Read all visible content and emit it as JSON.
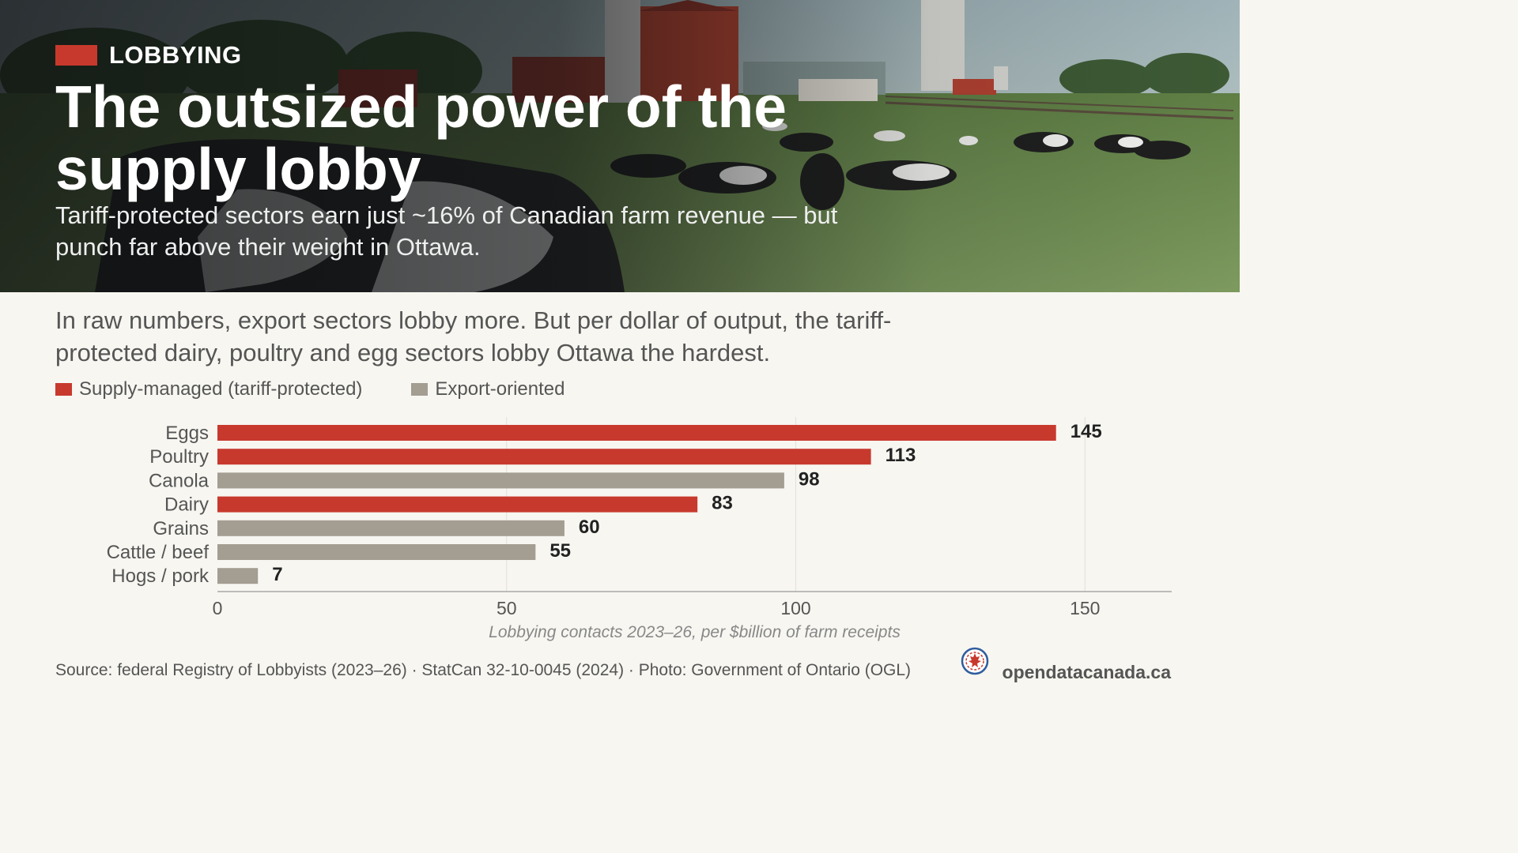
{
  "header": {
    "kicker": "LOBBYING",
    "title": "The outsized power of the supply lobby",
    "subtitle": "Tariff-protected sectors earn just ~16% of Canadian farm revenue — but punch far above their weight in Ottawa."
  },
  "dek": "In raw numbers, export sectors lobby more. But per dollar of output, the tariff-protected dairy, poultry and egg sectors lobby Ottawa the hardest.",
  "legend": {
    "supply": "Supply-managed (tariff-protected)",
    "export": "Export-oriented"
  },
  "colors": {
    "supply": "#c8392d",
    "export": "#a39d92",
    "accent": "#c8392d"
  },
  "chart_data": {
    "type": "bar",
    "orientation": "horizontal",
    "categories": [
      "Eggs",
      "Poultry",
      "Canola",
      "Dairy",
      "Grains",
      "Cattle / beef",
      "Hogs / pork"
    ],
    "values": [
      145,
      113,
      98,
      83,
      60,
      55,
      7
    ],
    "groups": [
      "supply",
      "supply",
      "export",
      "supply",
      "export",
      "export",
      "export"
    ],
    "xlabel": "Lobbying contacts 2023–26, per $billion of farm receipts",
    "ylabel": "",
    "xlim": [
      0,
      165
    ],
    "xticks": [
      0,
      50,
      100,
      150
    ],
    "grid": true,
    "legend_position": "top-left"
  },
  "footer": {
    "source": "Source: federal Registry of Lobbyists (2023–26) · StatCan 32-10-0045 (2024)  ·  Photo: Government of Ontario (OGL)",
    "site": "opendatacanada.ca"
  }
}
